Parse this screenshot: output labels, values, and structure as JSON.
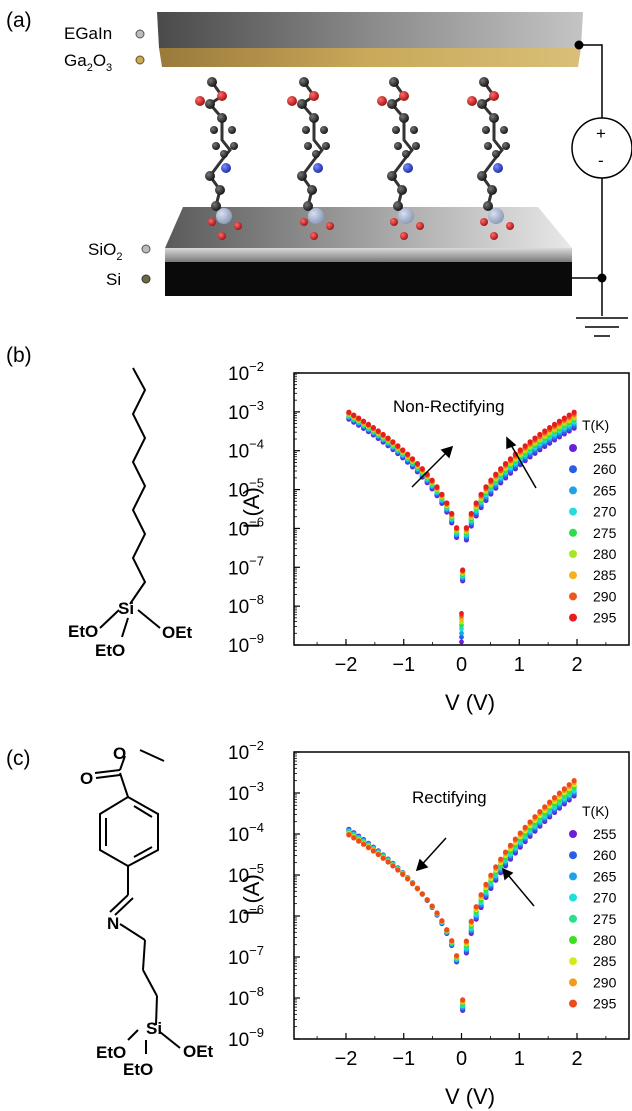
{
  "panel_a": {
    "label": "(a)",
    "layers": [
      {
        "name": "EGaIn",
        "sub": ""
      },
      {
        "name": "Ga",
        "sub": "2",
        "name2": "O",
        "sub2": "3"
      },
      {
        "name": "SiO",
        "sub": "2"
      },
      {
        "name": "Si",
        "sub": ""
      }
    ],
    "polarity_plus": "+",
    "polarity_minus": "-"
  },
  "panel_b": {
    "label": "(b)",
    "struct_labels": {
      "eto1": "EtO",
      "si": "Si",
      "oet": "OEt",
      "eto2": "EtO"
    }
  },
  "panel_c": {
    "label": "(c)",
    "struct_labels": {
      "o_carbonyl": "O",
      "o_ester": "O",
      "n": "N",
      "eto1": "EtO",
      "si": "Si",
      "oet": "OEt",
      "eto2": "EtO"
    }
  },
  "chart_data": [
    {
      "type": "scatter",
      "panel": "(b)",
      "annotation": "Non-Rectifying",
      "xlabel": "V (V)",
      "ylabel": "I (A)",
      "yscale": "log",
      "xlim": [
        -2.9,
        2.9
      ],
      "ylim": [
        1e-09,
        0.01
      ],
      "xticks": [
        "−2",
        "−1",
        "0",
        "1",
        "2"
      ],
      "yticks": [
        {
          "base": "10",
          "exp": "−9"
        },
        {
          "base": "10",
          "exp": "−8"
        },
        {
          "base": "10",
          "exp": "−7"
        },
        {
          "base": "10",
          "exp": "−6"
        },
        {
          "base": "10",
          "exp": "−5"
        },
        {
          "base": "10",
          "exp": "−4"
        },
        {
          "base": "10",
          "exp": "−3"
        },
        {
          "base": "10",
          "exp": "−2"
        }
      ],
      "legend_title": "T(K)",
      "legend_position": "right",
      "series": [
        {
          "name": "255",
          "color": "#6a1fd8",
          "I_at_minus2": 0.00065,
          "I_at_plus2": 0.00038,
          "I_min": 4.5e-08,
          "I_zero": 1.2e-09
        },
        {
          "name": "260",
          "color": "#2a5de8",
          "I_at_minus2": 0.0007,
          "I_at_plus2": 0.00043,
          "I_min": 5e-08,
          "I_zero": 1.6e-09
        },
        {
          "name": "265",
          "color": "#1ea3e8",
          "I_at_minus2": 0.00074,
          "I_at_plus2": 0.00049,
          "I_min": 5.5e-08,
          "I_zero": 2e-09
        },
        {
          "name": "270",
          "color": "#22dde0",
          "I_at_minus2": 0.00078,
          "I_at_plus2": 0.00055,
          "I_min": 6e-08,
          "I_zero": 2.6e-09
        },
        {
          "name": "275",
          "color": "#2adf4a",
          "I_at_minus2": 0.00082,
          "I_at_plus2": 0.00062,
          "I_min": 6.5e-08,
          "I_zero": 3.2e-09
        },
        {
          "name": "280",
          "color": "#a6e81e",
          "I_at_minus2": 0.00086,
          "I_at_plus2": 0.0007,
          "I_min": 7e-08,
          "I_zero": 3.9e-09
        },
        {
          "name": "285",
          "color": "#f5b11a",
          "I_at_minus2": 0.0009,
          "I_at_plus2": 0.00078,
          "I_min": 7.5e-08,
          "I_zero": 4.7e-09
        },
        {
          "name": "290",
          "color": "#f0551b",
          "I_at_minus2": 0.00094,
          "I_at_plus2": 0.00087,
          "I_min": 8e-08,
          "I_zero": 5.6e-09
        },
        {
          "name": "295",
          "color": "#e81c1c",
          "I_at_minus2": 0.00098,
          "I_at_plus2": 0.00098,
          "I_min": 8.5e-08,
          "I_zero": 6.5e-09
        }
      ]
    },
    {
      "type": "scatter",
      "panel": "(c)",
      "annotation": "Rectifying",
      "xlabel": "V (V)",
      "ylabel": "I (A)",
      "yscale": "log",
      "xlim": [
        -2.9,
        2.9
      ],
      "ylim": [
        1e-09,
        0.01
      ],
      "xticks": [
        "−2",
        "−1",
        "0",
        "1",
        "2"
      ],
      "yticks": [
        {
          "base": "10",
          "exp": "−9"
        },
        {
          "base": "10",
          "exp": "−8"
        },
        {
          "base": "10",
          "exp": "−7"
        },
        {
          "base": "10",
          "exp": "−6"
        },
        {
          "base": "10",
          "exp": "−5"
        },
        {
          "base": "10",
          "exp": "−4"
        },
        {
          "base": "10",
          "exp": "−3"
        },
        {
          "base": "10",
          "exp": "−2"
        }
      ],
      "legend_title": "T(K)",
      "legend_position": "right",
      "series": [
        {
          "name": "255",
          "color": "#6a1fd8",
          "I_at_minus2": 0.00013,
          "I_at_plus2": 0.00085,
          "I_min": 5e-09
        },
        {
          "name": "260",
          "color": "#2a5de8",
          "I_at_minus2": 0.000125,
          "I_at_plus2": 0.00095,
          "I_min": 5.5e-09
        },
        {
          "name": "265",
          "color": "#1ea3e8",
          "I_at_minus2": 0.00012,
          "I_at_plus2": 0.00105,
          "I_min": 6e-09
        },
        {
          "name": "270",
          "color": "#22dde0",
          "I_at_minus2": 0.000115,
          "I_at_plus2": 0.00115,
          "I_min": 6.5e-09
        },
        {
          "name": "275",
          "color": "#2adf8a",
          "I_at_minus2": 0.00011,
          "I_at_plus2": 0.0013,
          "I_min": 7e-09
        },
        {
          "name": "280",
          "color": "#3ee01e",
          "I_at_minus2": 0.000106,
          "I_at_plus2": 0.00145,
          "I_min": 7.5e-09
        },
        {
          "name": "285",
          "color": "#d8e81e",
          "I_at_minus2": 0.000102,
          "I_at_plus2": 0.0016,
          "I_min": 8e-09
        },
        {
          "name": "290",
          "color": "#f59a1a",
          "I_at_minus2": 9.8e-05,
          "I_at_plus2": 0.0018,
          "I_min": 8.5e-09
        },
        {
          "name": "295",
          "color": "#f04a1b",
          "I_at_minus2": 9.5e-05,
          "I_at_plus2": 0.002,
          "I_min": 9e-09
        }
      ]
    }
  ]
}
